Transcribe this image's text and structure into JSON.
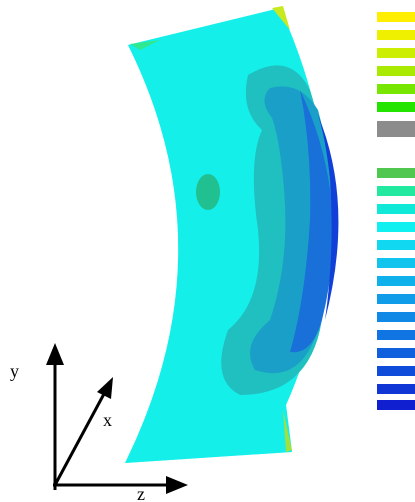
{
  "axes": {
    "y": "y",
    "x": "x",
    "z": "z"
  }
}
